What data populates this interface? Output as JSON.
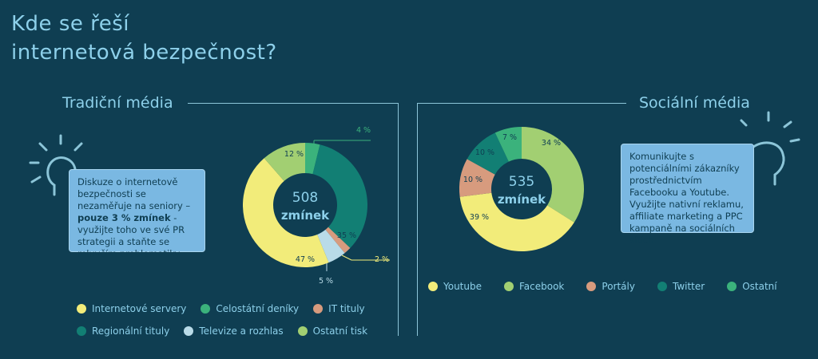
{
  "page": {
    "title_line1": "Kde se řeší",
    "title_line2": "internetová bezpečnost?"
  },
  "colors": {
    "background": "#0f3e52",
    "accent": "#8dd0ea",
    "callout": "#7ab8e2"
  },
  "traditional": {
    "title": "Tradiční média",
    "center_count": "508",
    "center_label": "zmínek",
    "callout": {
      "text1": "Diskuze o internetově bezpečnosti se nezaměřuje na seniory –",
      "bold": "pouze 3 % zmínek",
      "text2": " - využijte toho ve své PR strategii a staňte se mluvčím problematiky."
    },
    "legend": [
      {
        "label": "Internetové servery",
        "color": "#f2ec7a"
      },
      {
        "label": "Celostátní deníky",
        "color": "#3bb27c"
      },
      {
        "label": "IT tituly",
        "color": "#d79b7e"
      },
      {
        "label": "Regionální tituly",
        "color": "#127f74"
      },
      {
        "label": "Televize a rozhlas",
        "color": "#b9dbe8"
      },
      {
        "label": "Ostatní tisk",
        "color": "#a2cf72"
      }
    ]
  },
  "social": {
    "title": "Sociální média",
    "center_count": "535",
    "center_label": "zmínek",
    "callout": {
      "text": "Komunikujte s potenciálními zákazníky prostřednictvím Facebooku a Youtube. Využijte nativní reklamu, affiliate marketing a PPC kampaně na sociálních sítích."
    },
    "legend": [
      {
        "label": "Youtube",
        "color": "#f2ec7a"
      },
      {
        "label": "Facebook",
        "color": "#a2cf72"
      },
      {
        "label": "Portály",
        "color": "#d79b7e"
      },
      {
        "label": "Twitter",
        "color": "#127f74"
      },
      {
        "label": "Ostatní",
        "color": "#3bb27c"
      }
    ]
  },
  "chart_data": [
    {
      "type": "pie",
      "title": "Tradiční média",
      "categories": [
        "Celostátní deníky",
        "Regionální tituly",
        "IT tituly",
        "Televize a rozhlas",
        "Internetové servery",
        "Ostatní tisk"
      ],
      "values": [
        4,
        35,
        2,
        5,
        47,
        12
      ],
      "labels": [
        "4 %",
        "35 %",
        "2 %",
        "5 %",
        "47 %",
        "12 %"
      ],
      "colors": [
        "#3bb27c",
        "#127f74",
        "#d79b7e",
        "#b9dbe8",
        "#f2ec7a",
        "#a2cf72"
      ]
    },
    {
      "type": "pie",
      "title": "Sociální média",
      "categories": [
        "Facebook",
        "Youtube",
        "Portály",
        "Twitter",
        "Ostatní"
      ],
      "values": [
        34,
        39,
        10,
        10,
        7
      ],
      "labels": [
        "34 %",
        "39 %",
        "10 %",
        "10 %",
        "7 %"
      ],
      "colors": [
        "#a2cf72",
        "#f2ec7a",
        "#d79b7e",
        "#127f74",
        "#3bb27c"
      ]
    }
  ]
}
